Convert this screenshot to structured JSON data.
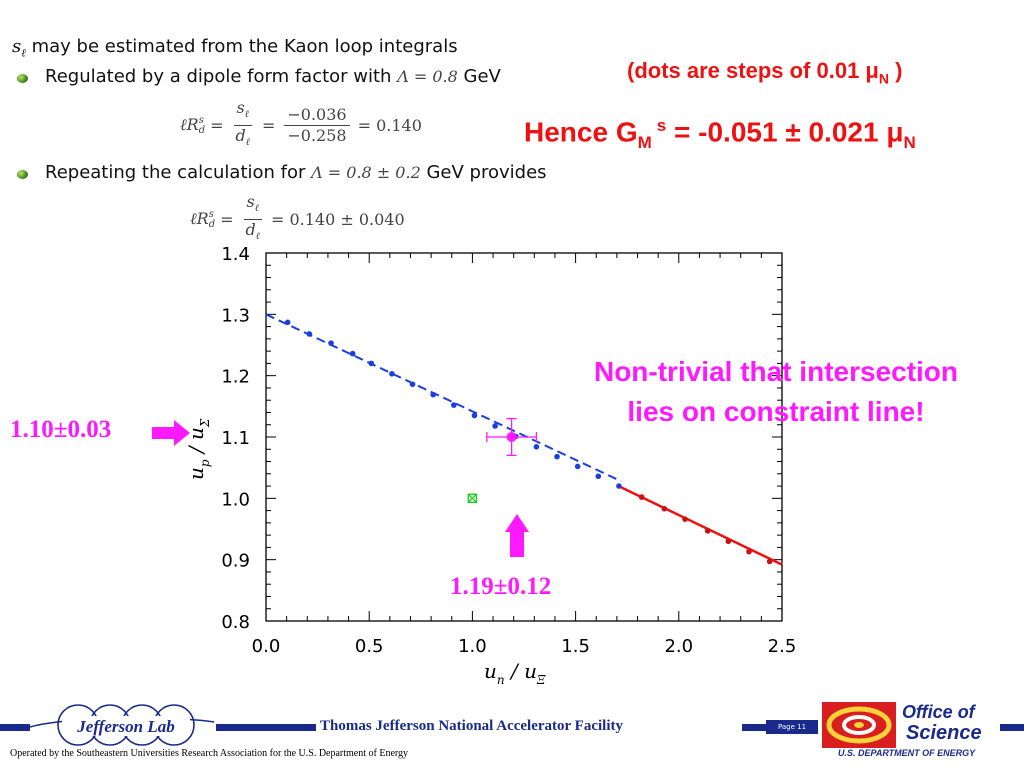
{
  "slide": {
    "line1_text": "may be estimated from the Kaon loop integrals",
    "line1_symbol": "s",
    "line1_symbol_sub": "ℓ",
    "bullet1_pre": "Regulated by a dipole form factor with",
    "bullet1_math": "Λ = 0.8",
    "bullet1_post": "GeV",
    "eq1_lhs": "ℓR",
    "eq1_lhs_sup": "s",
    "eq1_lhs_sub": "d",
    "eq1_frac1_num": "s",
    "eq1_frac1_num_sub": "ℓ",
    "eq1_frac1_den": "d",
    "eq1_frac1_den_sub": "ℓ",
    "eq1_frac2_num": "−0.036",
    "eq1_frac2_den": "−0.258",
    "eq1_result": "= 0.140",
    "bullet2_pre": "Repeating the calculation for",
    "bullet2_math": "Λ = 0.8 ± 0.2",
    "bullet2_post": "GeV provides",
    "eq2_result": "= 0.140 ± 0.040",
    "dots_note_pre": "(dots are steps of 0.01 μ",
    "dots_note_sub": "N",
    "dots_note_post": " )",
    "hence_pre": "Hence G",
    "hence_sub": "M",
    "hence_sup": "s",
    "hence_value": " = -0.051 ± 0.021 μ",
    "hence_unit_sub": "N",
    "nontrivial_line1": "Non-trivial that intersection",
    "nontrivial_line2": "lies on constraint line!",
    "left_annotation": "1.10±0.03",
    "bottom_annotation": "1.19±0.12"
  },
  "footer": {
    "logo_text": "Jefferson Lab",
    "facility": "Thomas Jefferson National Accelerator Facility",
    "page": "Page 11",
    "operated_by": "Operated by the Southeastern Universities Research Association for the U.S. Department of  Energy",
    "doe_office": "Office of",
    "doe_science": "Science",
    "doe_dept": "U.S. DEPARTMENT OF ENERGY"
  },
  "colors": {
    "dashed_line": "#1a3ee0",
    "dots_blue": "#1a3ee0",
    "solid_line": "#ee1111",
    "dots_red": "#cc1111",
    "intersection": "#ff19ff",
    "green_marker": "#22cc22",
    "annotation": "#ff19ff",
    "title_red": "#ee1111",
    "footer_blue": "#1a2a8c"
  },
  "chart_data": {
    "type": "line",
    "xlabel": "u_n / u_Ξ",
    "ylabel": "u_p / u_Σ",
    "xlabel_main": "u",
    "xlabel_sub": "n",
    "xlabel_sep": " / ",
    "xlabel_main2": "u",
    "xlabel_sub2": "Ξ",
    "ylabel_main": "u",
    "ylabel_sub": "p",
    "ylabel_sep": " / ",
    "ylabel_main2": "u",
    "ylabel_sub2": "Σ",
    "xlim": [
      0.0,
      2.5
    ],
    "ylim": [
      0.8,
      1.4
    ],
    "xticks": [
      0.0,
      0.5,
      1.0,
      1.5,
      2.0,
      2.5
    ],
    "yticks": [
      0.8,
      0.9,
      1.0,
      1.1,
      1.2,
      1.3,
      1.4
    ],
    "xtick_labels": [
      "0.0",
      "0.5",
      "1.0",
      "1.5",
      "2.0",
      "2.5"
    ],
    "ytick_labels": [
      "0.8",
      "0.9",
      "1.0",
      "1.1",
      "1.2",
      "1.3",
      "1.4"
    ],
    "series": [
      {
        "style": "dashed",
        "color": "#1a3ee0",
        "line": [
          [
            0.0,
            1.3
          ],
          [
            1.72,
            1.028
          ]
        ],
        "points": [
          [
            0.105,
            1.287
          ],
          [
            0.21,
            1.268
          ],
          [
            0.315,
            1.253
          ],
          [
            0.42,
            1.236
          ],
          [
            0.51,
            1.22
          ],
          [
            0.61,
            1.203
          ],
          [
            0.71,
            1.186
          ],
          [
            0.81,
            1.169
          ],
          [
            0.91,
            1.152
          ],
          [
            1.01,
            1.135
          ],
          [
            1.11,
            1.118
          ],
          [
            1.21,
            1.101
          ],
          [
            1.31,
            1.084
          ],
          [
            1.41,
            1.068
          ],
          [
            1.51,
            1.052
          ],
          [
            1.61,
            1.036
          ],
          [
            1.71,
            1.02
          ]
        ]
      },
      {
        "style": "solid",
        "color": "#ee1111",
        "line": [
          [
            1.72,
            1.018
          ],
          [
            2.5,
            0.892
          ]
        ],
        "points": [
          [
            1.82,
            1.002
          ],
          [
            1.93,
            0.983
          ],
          [
            2.03,
            0.966
          ],
          [
            2.14,
            0.947
          ],
          [
            2.24,
            0.93
          ],
          [
            2.34,
            0.913
          ],
          [
            2.44,
            0.897
          ]
        ]
      }
    ],
    "intersection": {
      "x": 1.19,
      "x_err": 0.12,
      "y": 1.1,
      "y_err": 0.03
    },
    "green_point": {
      "x": 1.0,
      "y": 1.0
    }
  }
}
